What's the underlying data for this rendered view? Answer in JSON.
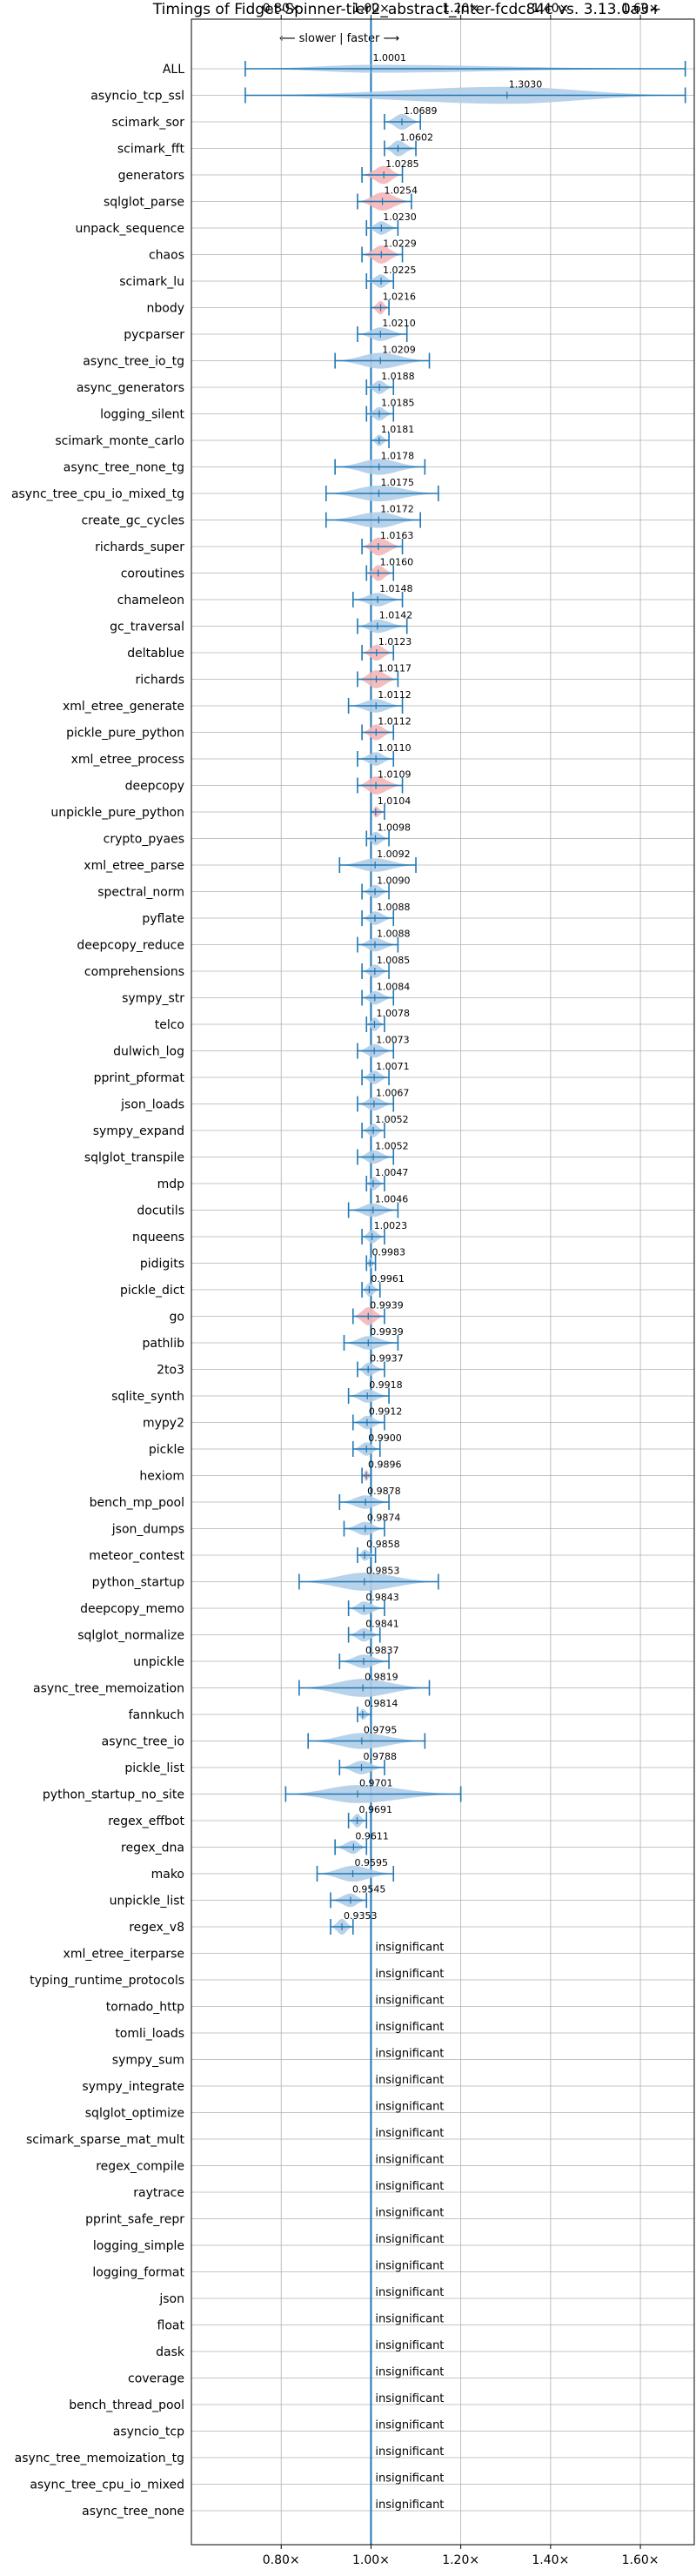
{
  "chart_data": {
    "type": "violin",
    "title": "Timings of Fidget-Spinner-tier2_abstract_inter-fcdc84c vs. 3.13.0a3+",
    "direction_label": "⟵ slower | faster ⟶",
    "x_ticks": [
      "0.80×",
      "1.00×",
      "1.20×",
      "1.40×",
      "1.60×"
    ],
    "x_tick_values": [
      0.8,
      1.0,
      1.2,
      1.4,
      1.6
    ],
    "xlim": [
      0.6,
      1.72
    ],
    "grid": true,
    "insignificant_text": "insignificant",
    "colors": {
      "faster": "#b0cde8",
      "slower": "#f4b6b8",
      "line": "#1f77b4"
    },
    "benchmarks": [
      {
        "name": "ALL",
        "label": "1.0001",
        "value": 1.0001,
        "lo": 0.72,
        "hi": 1.7,
        "width": 0.35,
        "color": "blue"
      },
      {
        "name": "asyncio_tcp_ssl",
        "label": "1.3030",
        "value": 1.303,
        "lo": 0.72,
        "hi": 1.7,
        "width": 0.75,
        "color": "blue"
      },
      {
        "name": "scimark_sor",
        "label": "1.0689",
        "value": 1.0689,
        "lo": 1.03,
        "hi": 1.11,
        "width": 0.7,
        "color": "blue"
      },
      {
        "name": "scimark_fft",
        "label": "1.0602",
        "value": 1.0602,
        "lo": 1.03,
        "hi": 1.1,
        "width": 0.7,
        "color": "blue"
      },
      {
        "name": "generators",
        "label": "1.0285",
        "value": 1.0285,
        "lo": 0.98,
        "hi": 1.07,
        "width": 0.8,
        "color": "red"
      },
      {
        "name": "sqlglot_parse",
        "label": "1.0254",
        "value": 1.0254,
        "lo": 0.97,
        "hi": 1.09,
        "width": 0.8,
        "color": "red"
      },
      {
        "name": "unpack_sequence",
        "label": "1.0230",
        "value": 1.023,
        "lo": 0.99,
        "hi": 1.06,
        "width": 0.6,
        "color": "blue"
      },
      {
        "name": "chaos",
        "label": "1.0229",
        "value": 1.0229,
        "lo": 0.98,
        "hi": 1.07,
        "width": 0.8,
        "color": "red"
      },
      {
        "name": "scimark_lu",
        "label": "1.0225",
        "value": 1.0225,
        "lo": 0.99,
        "hi": 1.05,
        "width": 0.6,
        "color": "blue"
      },
      {
        "name": "nbody",
        "label": "1.0216",
        "value": 1.0216,
        "lo": 1.0,
        "hi": 1.04,
        "width": 0.6,
        "color": "red"
      },
      {
        "name": "pycparser",
        "label": "1.0210",
        "value": 1.021,
        "lo": 0.97,
        "hi": 1.08,
        "width": 0.6,
        "color": "blue"
      },
      {
        "name": "async_tree_io_tg",
        "label": "1.0209",
        "value": 1.0209,
        "lo": 0.92,
        "hi": 1.13,
        "width": 0.7,
        "color": "blue"
      },
      {
        "name": "async_generators",
        "label": "1.0188",
        "value": 1.0188,
        "lo": 0.99,
        "hi": 1.05,
        "width": 0.6,
        "color": "blue"
      },
      {
        "name": "logging_silent",
        "label": "1.0185",
        "value": 1.0185,
        "lo": 0.99,
        "hi": 1.05,
        "width": 0.6,
        "color": "blue"
      },
      {
        "name": "scimark_monte_carlo",
        "label": "1.0181",
        "value": 1.0181,
        "lo": 1.0,
        "hi": 1.04,
        "width": 0.5,
        "color": "blue"
      },
      {
        "name": "async_tree_none_tg",
        "label": "1.0178",
        "value": 1.0178,
        "lo": 0.92,
        "hi": 1.12,
        "width": 0.7,
        "color": "blue"
      },
      {
        "name": "async_tree_cpu_io_mixed_tg",
        "label": "1.0175",
        "value": 1.0175,
        "lo": 0.9,
        "hi": 1.15,
        "width": 0.7,
        "color": "blue"
      },
      {
        "name": "create_gc_cycles",
        "label": "1.0172",
        "value": 1.0172,
        "lo": 0.9,
        "hi": 1.11,
        "width": 0.7,
        "color": "blue"
      },
      {
        "name": "richards_super",
        "label": "1.0163",
        "value": 1.0163,
        "lo": 0.98,
        "hi": 1.07,
        "width": 0.8,
        "color": "red"
      },
      {
        "name": "coroutines",
        "label": "1.0160",
        "value": 1.016,
        "lo": 0.99,
        "hi": 1.05,
        "width": 0.7,
        "color": "red"
      },
      {
        "name": "chameleon",
        "label": "1.0148",
        "value": 1.0148,
        "lo": 0.96,
        "hi": 1.07,
        "width": 0.6,
        "color": "blue"
      },
      {
        "name": "gc_traversal",
        "label": "1.0142",
        "value": 1.0142,
        "lo": 0.97,
        "hi": 1.08,
        "width": 0.6,
        "color": "blue"
      },
      {
        "name": "deltablue",
        "label": "1.0123",
        "value": 1.0123,
        "lo": 0.98,
        "hi": 1.05,
        "width": 0.7,
        "color": "red"
      },
      {
        "name": "richards",
        "label": "1.0117",
        "value": 1.0117,
        "lo": 0.97,
        "hi": 1.06,
        "width": 0.8,
        "color": "red"
      },
      {
        "name": "xml_etree_generate",
        "label": "1.0112",
        "value": 1.0112,
        "lo": 0.95,
        "hi": 1.07,
        "width": 0.6,
        "color": "blue"
      },
      {
        "name": "pickle_pure_python",
        "label": "1.0112",
        "value": 1.0112,
        "lo": 0.98,
        "hi": 1.05,
        "width": 0.7,
        "color": "red"
      },
      {
        "name": "xml_etree_process",
        "label": "1.0110",
        "value": 1.011,
        "lo": 0.97,
        "hi": 1.05,
        "width": 0.6,
        "color": "blue"
      },
      {
        "name": "deepcopy",
        "label": "1.0109",
        "value": 1.0109,
        "lo": 0.97,
        "hi": 1.07,
        "width": 0.8,
        "color": "red"
      },
      {
        "name": "unpickle_pure_python",
        "label": "1.0104",
        "value": 1.0104,
        "lo": 1.0,
        "hi": 1.03,
        "width": 0.5,
        "color": "red"
      },
      {
        "name": "crypto_pyaes",
        "label": "1.0098",
        "value": 1.0098,
        "lo": 0.99,
        "hi": 1.04,
        "width": 0.6,
        "color": "blue"
      },
      {
        "name": "xml_etree_parse",
        "label": "1.0092",
        "value": 1.0092,
        "lo": 0.93,
        "hi": 1.1,
        "width": 0.6,
        "color": "blue"
      },
      {
        "name": "spectral_norm",
        "label": "1.0090",
        "value": 1.009,
        "lo": 0.98,
        "hi": 1.04,
        "width": 0.6,
        "color": "blue"
      },
      {
        "name": "pyflate",
        "label": "1.0088",
        "value": 1.0088,
        "lo": 0.98,
        "hi": 1.05,
        "width": 0.6,
        "color": "blue"
      },
      {
        "name": "deepcopy_reduce",
        "label": "1.0088",
        "value": 1.0088,
        "lo": 0.97,
        "hi": 1.06,
        "width": 0.6,
        "color": "blue"
      },
      {
        "name": "comprehensions",
        "label": "1.0085",
        "value": 1.0085,
        "lo": 0.98,
        "hi": 1.04,
        "width": 0.6,
        "color": "blue"
      },
      {
        "name": "sympy_str",
        "label": "1.0084",
        "value": 1.0084,
        "lo": 0.98,
        "hi": 1.05,
        "width": 0.6,
        "color": "blue"
      },
      {
        "name": "telco",
        "label": "1.0078",
        "value": 1.0078,
        "lo": 0.99,
        "hi": 1.03,
        "width": 0.6,
        "color": "blue"
      },
      {
        "name": "dulwich_log",
        "label": "1.0073",
        "value": 1.0073,
        "lo": 0.97,
        "hi": 1.05,
        "width": 0.6,
        "color": "blue"
      },
      {
        "name": "pprint_pformat",
        "label": "1.0071",
        "value": 1.0071,
        "lo": 0.98,
        "hi": 1.04,
        "width": 0.6,
        "color": "blue"
      },
      {
        "name": "json_loads",
        "label": "1.0067",
        "value": 1.0067,
        "lo": 0.97,
        "hi": 1.05,
        "width": 0.6,
        "color": "blue"
      },
      {
        "name": "sympy_expand",
        "label": "1.0052",
        "value": 1.0052,
        "lo": 0.98,
        "hi": 1.03,
        "width": 0.6,
        "color": "blue"
      },
      {
        "name": "sqlglot_transpile",
        "label": "1.0052",
        "value": 1.0052,
        "lo": 0.97,
        "hi": 1.05,
        "width": 0.6,
        "color": "blue"
      },
      {
        "name": "mdp",
        "label": "1.0047",
        "value": 1.0047,
        "lo": 0.99,
        "hi": 1.03,
        "width": 0.6,
        "color": "blue"
      },
      {
        "name": "docutils",
        "label": "1.0046",
        "value": 1.0046,
        "lo": 0.95,
        "hi": 1.06,
        "width": 0.6,
        "color": "blue"
      },
      {
        "name": "nqueens",
        "label": "1.0023",
        "value": 1.0023,
        "lo": 0.98,
        "hi": 1.03,
        "width": 0.6,
        "color": "blue"
      },
      {
        "name": "pidigits",
        "label": "0.9983",
        "value": 0.9983,
        "lo": 0.99,
        "hi": 1.01,
        "width": 0.5,
        "color": "blue"
      },
      {
        "name": "pickle_dict",
        "label": "0.9961",
        "value": 0.9961,
        "lo": 0.98,
        "hi": 1.02,
        "width": 0.6,
        "color": "blue"
      },
      {
        "name": "go",
        "label": "0.9939",
        "value": 0.9939,
        "lo": 0.96,
        "hi": 1.03,
        "width": 0.8,
        "color": "red"
      },
      {
        "name": "pathlib",
        "label": "0.9939",
        "value": 0.9939,
        "lo": 0.94,
        "hi": 1.06,
        "width": 0.6,
        "color": "blue"
      },
      {
        "name": "2to3",
        "label": "0.9937",
        "value": 0.9937,
        "lo": 0.97,
        "hi": 1.03,
        "width": 0.6,
        "color": "blue"
      },
      {
        "name": "sqlite_synth",
        "label": "0.9918",
        "value": 0.9918,
        "lo": 0.95,
        "hi": 1.04,
        "width": 0.6,
        "color": "blue"
      },
      {
        "name": "mypy2",
        "label": "0.9912",
        "value": 0.9912,
        "lo": 0.96,
        "hi": 1.03,
        "width": 0.6,
        "color": "blue"
      },
      {
        "name": "pickle",
        "label": "0.9900",
        "value": 0.99,
        "lo": 0.96,
        "hi": 1.02,
        "width": 0.6,
        "color": "blue"
      },
      {
        "name": "hexiom",
        "label": "0.9896",
        "value": 0.9896,
        "lo": 0.98,
        "hi": 1.0,
        "width": 0.5,
        "color": "red"
      },
      {
        "name": "bench_mp_pool",
        "label": "0.9878",
        "value": 0.9878,
        "lo": 0.93,
        "hi": 1.04,
        "width": 0.6,
        "color": "blue"
      },
      {
        "name": "json_dumps",
        "label": "0.9874",
        "value": 0.9874,
        "lo": 0.94,
        "hi": 1.03,
        "width": 0.6,
        "color": "blue"
      },
      {
        "name": "meteor_contest",
        "label": "0.9858",
        "value": 0.9858,
        "lo": 0.97,
        "hi": 1.01,
        "width": 0.5,
        "color": "blue"
      },
      {
        "name": "python_startup",
        "label": "0.9853",
        "value": 0.9853,
        "lo": 0.84,
        "hi": 1.15,
        "width": 0.8,
        "color": "blue"
      },
      {
        "name": "deepcopy_memo",
        "label": "0.9843",
        "value": 0.9843,
        "lo": 0.95,
        "hi": 1.03,
        "width": 0.6,
        "color": "blue"
      },
      {
        "name": "sqlglot_normalize",
        "label": "0.9841",
        "value": 0.9841,
        "lo": 0.95,
        "hi": 1.02,
        "width": 0.6,
        "color": "blue"
      },
      {
        "name": "unpickle",
        "label": "0.9837",
        "value": 0.9837,
        "lo": 0.93,
        "hi": 1.04,
        "width": 0.6,
        "color": "blue"
      },
      {
        "name": "async_tree_memoization",
        "label": "0.9819",
        "value": 0.9819,
        "lo": 0.84,
        "hi": 1.13,
        "width": 0.8,
        "color": "blue"
      },
      {
        "name": "fannkuch",
        "label": "0.9814",
        "value": 0.9814,
        "lo": 0.97,
        "hi": 1.0,
        "width": 0.5,
        "color": "blue"
      },
      {
        "name": "async_tree_io",
        "label": "0.9795",
        "value": 0.9795,
        "lo": 0.86,
        "hi": 1.12,
        "width": 0.7,
        "color": "blue"
      },
      {
        "name": "pickle_list",
        "label": "0.9788",
        "value": 0.9788,
        "lo": 0.93,
        "hi": 1.03,
        "width": 0.6,
        "color": "blue"
      },
      {
        "name": "python_startup_no_site",
        "label": "0.9701",
        "value": 0.9701,
        "lo": 0.81,
        "hi": 1.2,
        "width": 0.8,
        "color": "blue"
      },
      {
        "name": "regex_effbot",
        "label": "0.9691",
        "value": 0.9691,
        "lo": 0.95,
        "hi": 0.99,
        "width": 0.6,
        "color": "blue"
      },
      {
        "name": "regex_dna",
        "label": "0.9611",
        "value": 0.9611,
        "lo": 0.92,
        "hi": 0.99,
        "width": 0.6,
        "color": "blue"
      },
      {
        "name": "mako",
        "label": "0.9595",
        "value": 0.9595,
        "lo": 0.88,
        "hi": 1.05,
        "width": 0.7,
        "color": "blue"
      },
      {
        "name": "unpickle_list",
        "label": "0.9545",
        "value": 0.9545,
        "lo": 0.91,
        "hi": 0.99,
        "width": 0.6,
        "color": "blue"
      },
      {
        "name": "regex_v8",
        "label": "0.9353",
        "value": 0.9353,
        "lo": 0.91,
        "hi": 0.96,
        "width": 0.7,
        "color": "blue"
      },
      {
        "name": "xml_etree_iterparse",
        "insignificant": true
      },
      {
        "name": "typing_runtime_protocols",
        "insignificant": true
      },
      {
        "name": "tornado_http",
        "insignificant": true
      },
      {
        "name": "tomli_loads",
        "insignificant": true
      },
      {
        "name": "sympy_sum",
        "insignificant": true
      },
      {
        "name": "sympy_integrate",
        "insignificant": true
      },
      {
        "name": "sqlglot_optimize",
        "insignificant": true
      },
      {
        "name": "scimark_sparse_mat_mult",
        "insignificant": true
      },
      {
        "name": "regex_compile",
        "insignificant": true
      },
      {
        "name": "raytrace",
        "insignificant": true
      },
      {
        "name": "pprint_safe_repr",
        "insignificant": true
      },
      {
        "name": "logging_simple",
        "insignificant": true
      },
      {
        "name": "logging_format",
        "insignificant": true
      },
      {
        "name": "json",
        "insignificant": true
      },
      {
        "name": "float",
        "insignificant": true
      },
      {
        "name": "dask",
        "insignificant": true
      },
      {
        "name": "coverage",
        "insignificant": true
      },
      {
        "name": "bench_thread_pool",
        "insignificant": true
      },
      {
        "name": "asyncio_tcp",
        "insignificant": true
      },
      {
        "name": "async_tree_memoization_tg",
        "insignificant": true
      },
      {
        "name": "async_tree_cpu_io_mixed",
        "insignificant": true
      },
      {
        "name": "async_tree_none",
        "insignificant": true
      }
    ]
  }
}
